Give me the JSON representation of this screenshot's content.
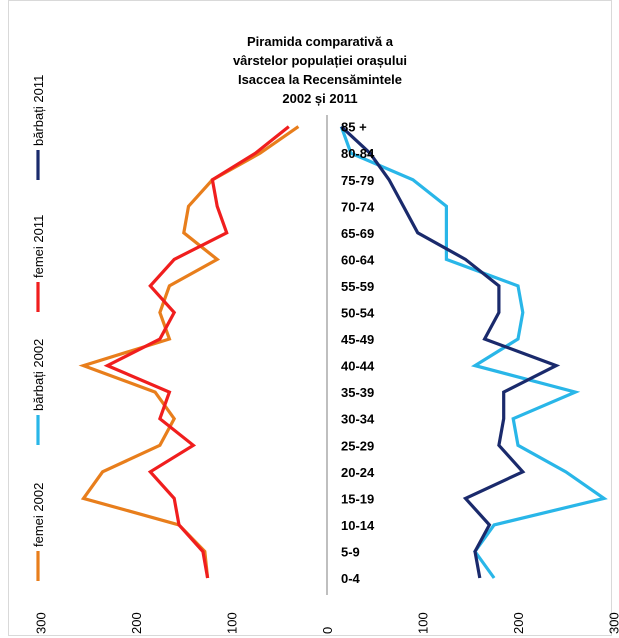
{
  "chart_data": {
    "type": "line",
    "title_lines": [
      "Piramida comparativă a",
      "vârstelor populației orașului",
      "Isaccea la Recensămintele",
      "2002 și 2011"
    ],
    "categories": [
      "0-4",
      "5-9",
      "10-14",
      "15-19",
      "20-24",
      "25-29",
      "30-34",
      "35-39",
      "40-44",
      "45-49",
      "50-54",
      "55-59",
      "60-64",
      "65-69",
      "70-74",
      "75-79",
      "80-84",
      "85 +"
    ],
    "x_ticks": [
      "300",
      "200",
      "100",
      "0",
      "100",
      "200",
      "300"
    ],
    "x_tick_values": [
      -300,
      -200,
      -100,
      0,
      100,
      200,
      300
    ],
    "xlim": [
      -300,
      300
    ],
    "series": [
      {
        "name": "femei 2002",
        "color": "#E87E1C",
        "side": "left",
        "values": [
          125,
          128,
          155,
          255,
          235,
          175,
          160,
          180,
          255,
          165,
          175,
          165,
          115,
          150,
          145,
          120,
          70,
          30
        ]
      },
      {
        "name": "bărbați 2002",
        "color": "#29B6E8",
        "side": "right",
        "values": [
          175,
          155,
          175,
          290,
          250,
          200,
          195,
          260,
          155,
          200,
          205,
          200,
          125,
          125,
          125,
          90,
          25,
          15
        ]
      },
      {
        "name": "femei 2011",
        "color": "#F01E1E",
        "side": "left",
        "values": [
          125,
          130,
          155,
          160,
          185,
          140,
          175,
          165,
          230,
          175,
          160,
          185,
          160,
          105,
          115,
          120,
          75,
          40
        ]
      },
      {
        "name": "bărbați 2011",
        "color": "#1A2A6C",
        "side": "right",
        "values": [
          160,
          155,
          170,
          145,
          205,
          180,
          185,
          185,
          240,
          165,
          180,
          180,
          145,
          95,
          80,
          65,
          45,
          15
        ]
      }
    ],
    "legend_position": "left, vertical"
  }
}
